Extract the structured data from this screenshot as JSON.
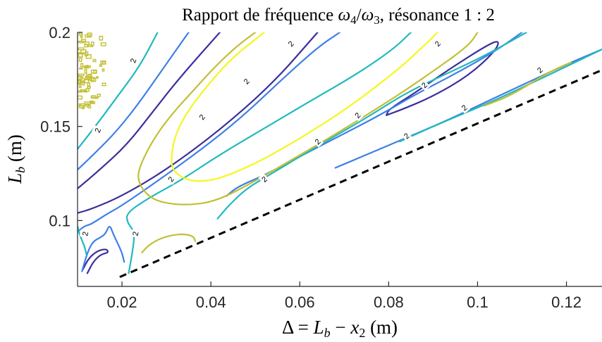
{
  "chart_data": {
    "type": "contour",
    "title": "Rapport de fréquence ω4/ω3, résonance 1 : 2",
    "title_parts": {
      "prefix": "Rapport de fréquence ",
      "omega4": "ω",
      "sub4": "4",
      "slash": "/",
      "omega3": "ω",
      "sub3": "3",
      "suffix": ", résonance 1 : 2"
    },
    "xlabel": "Δ = Lb − x2 (m)",
    "xlabel_parts": {
      "delta": "Δ",
      "eq": " = ",
      "L": "L",
      "b": "b",
      "minus": " − ",
      "x": "x",
      "two": "2",
      "unit": " (m)"
    },
    "ylabel": "Lb (m)",
    "ylabel_parts": {
      "L": "L",
      "b": "b",
      "unit": " (m)"
    },
    "xlim": [
      0.01,
      0.128
    ],
    "ylim": [
      0.065,
      0.2
    ],
    "xticks": [
      0.02,
      0.04,
      0.06,
      0.08,
      0.1,
      0.12
    ],
    "xtick_labels": [
      "0.02",
      "0.04",
      "0.06",
      "0.08",
      "0.1",
      "0.12"
    ],
    "yticks": [
      0.1,
      0.15,
      0.2
    ],
    "ytick_labels": [
      "0.1",
      "0.15",
      "0.2"
    ],
    "contour_label_text": "2",
    "grid": false,
    "colors": {
      "dark_blue": "#3b2f9a",
      "blue": "#3f7fe6",
      "teal": "#21b8be",
      "olive": "#c2bf34",
      "yellow": "#f4f71c",
      "boundary": "#000000"
    },
    "boundary_line": {
      "style": "dashed",
      "x": [
        0.0195,
        0.128
      ],
      "y": [
        0.07,
        0.18
      ]
    },
    "contours": [
      {
        "level": "dark_blue",
        "points": [
          [
            0.0112,
            0.074
          ],
          [
            0.0125,
            0.08
          ],
          [
            0.0145,
            0.084
          ],
          [
            0.0165,
            0.085
          ],
          [
            0.017,
            0.083
          ],
          [
            0.0152,
            0.082
          ],
          [
            0.0135,
            0.078
          ],
          [
            0.0122,
            0.072
          ]
        ]
      },
      {
        "level": "dark_blue",
        "points": [
          [
            0.01,
            0.104
          ],
          [
            0.013,
            0.106
          ],
          [
            0.02,
            0.113
          ],
          [
            0.03,
            0.127
          ],
          [
            0.042,
            0.148
          ],
          [
            0.054,
            0.173
          ],
          [
            0.064,
            0.2
          ]
        ]
      },
      {
        "level": "dark_blue",
        "points": [
          [
            0.01,
            0.117
          ],
          [
            0.015,
            0.127
          ],
          [
            0.021,
            0.14
          ],
          [
            0.027,
            0.158
          ],
          [
            0.033,
            0.176
          ],
          [
            0.042,
            0.2
          ]
        ]
      },
      {
        "level": "dark_blue",
        "points": [
          [
            0.0795,
            0.156
          ],
          [
            0.083,
            0.159
          ],
          [
            0.09,
            0.166
          ],
          [
            0.098,
            0.177
          ],
          [
            0.104,
            0.19
          ],
          [
            0.105,
            0.196
          ],
          [
            0.102,
            0.193
          ],
          [
            0.094,
            0.181
          ],
          [
            0.086,
            0.168
          ],
          [
            0.08,
            0.159
          ],
          [
            0.0795,
            0.156
          ]
        ]
      },
      {
        "level": "blue",
        "points": [
          [
            0.011,
            0.073
          ],
          [
            0.0122,
            0.083
          ],
          [
            0.0135,
            0.089
          ],
          [
            0.0152,
            0.091
          ],
          [
            0.0163,
            0.093
          ],
          [
            0.0172,
            0.098
          ],
          [
            0.018,
            0.093
          ],
          [
            0.019,
            0.088
          ],
          [
            0.02,
            0.083
          ],
          [
            0.0205,
            0.078
          ]
        ]
      },
      {
        "level": "blue",
        "points": [
          [
            0.01,
            0.094
          ],
          [
            0.0115,
            0.097
          ],
          [
            0.013,
            0.098
          ],
          [
            0.015,
            0.101
          ],
          [
            0.017,
            0.104
          ],
          [
            0.02,
            0.108
          ],
          [
            0.028,
            0.121
          ],
          [
            0.038,
            0.138
          ],
          [
            0.047,
            0.155
          ],
          [
            0.056,
            0.175
          ],
          [
            0.064,
            0.192
          ],
          [
            0.069,
            0.2
          ]
        ]
      },
      {
        "level": "blue",
        "points": [
          [
            0.01,
            0.127
          ],
          [
            0.014,
            0.136
          ],
          [
            0.019,
            0.148
          ],
          [
            0.024,
            0.163
          ],
          [
            0.029,
            0.18
          ],
          [
            0.035,
            0.2
          ]
        ]
      },
      {
        "level": "blue",
        "points": [
          [
            0.0435,
            0.113
          ],
          [
            0.046,
            0.118
          ],
          [
            0.052,
            0.124
          ],
          [
            0.06,
            0.134
          ],
          [
            0.069,
            0.145
          ],
          [
            0.078,
            0.156
          ],
          [
            0.086,
            0.167
          ],
          [
            0.095,
            0.178
          ],
          [
            0.104,
            0.19
          ],
          [
            0.11,
            0.2
          ]
        ]
      },
      {
        "level": "blue",
        "points": [
          [
            0.068,
            0.128
          ],
          [
            0.075,
            0.135
          ],
          [
            0.083,
            0.143
          ],
          [
            0.092,
            0.152
          ],
          [
            0.101,
            0.162
          ],
          [
            0.11,
            0.172
          ],
          [
            0.12,
            0.183
          ],
          [
            0.128,
            0.191
          ]
        ]
      },
      {
        "level": "teal",
        "points": [
          [
            0.01,
            0.097
          ],
          [
            0.0105,
            0.092
          ],
          [
            0.0115,
            0.087
          ],
          [
            0.012,
            0.082
          ]
        ]
      },
      {
        "level": "teal",
        "points": [
          [
            0.0215,
            0.072
          ],
          [
            0.0222,
            0.081
          ],
          [
            0.0228,
            0.091
          ],
          [
            0.0225,
            0.095
          ],
          [
            0.0212,
            0.099
          ],
          [
            0.021,
            0.104
          ],
          [
            0.026,
            0.112
          ],
          [
            0.033,
            0.121
          ],
          [
            0.042,
            0.135
          ],
          [
            0.052,
            0.149
          ],
          [
            0.062,
            0.163
          ],
          [
            0.073,
            0.178
          ],
          [
            0.081,
            0.191
          ],
          [
            0.085,
            0.2
          ]
        ]
      },
      {
        "level": "teal",
        "points": [
          [
            0.01,
            0.138
          ],
          [
            0.014,
            0.15
          ],
          [
            0.019,
            0.166
          ],
          [
            0.024,
            0.182
          ],
          [
            0.028,
            0.2
          ]
        ]
      },
      {
        "level": "teal",
        "points": [
          [
            0.0415,
            0.101
          ],
          [
            0.044,
            0.108
          ],
          [
            0.048,
            0.117
          ],
          [
            0.053,
            0.124
          ],
          [
            0.06,
            0.134
          ],
          [
            0.068,
            0.145
          ],
          [
            0.076,
            0.156
          ],
          [
            0.084,
            0.168
          ],
          [
            0.093,
            0.178
          ],
          [
            0.102,
            0.188
          ],
          [
            0.111,
            0.2
          ]
        ]
      },
      {
        "level": "teal",
        "points": [
          [
            0.0825,
            0.142
          ],
          [
            0.089,
            0.149
          ],
          [
            0.096,
            0.156
          ],
          [
            0.104,
            0.164
          ],
          [
            0.113,
            0.174
          ],
          [
            0.121,
            0.183
          ],
          [
            0.128,
            0.191
          ]
        ]
      },
      {
        "level": "olive",
        "points": [
          [
            0.0245,
            0.083
          ],
          [
            0.026,
            0.087
          ],
          [
            0.029,
            0.091
          ],
          [
            0.033,
            0.093
          ],
          [
            0.036,
            0.092
          ],
          [
            0.0365,
            0.089
          ]
        ]
      },
      {
        "level": "olive",
        "points": [
          [
            0.05,
            0.2
          ],
          [
            0.046,
            0.193
          ],
          [
            0.041,
            0.182
          ],
          [
            0.036,
            0.169
          ],
          [
            0.031,
            0.156
          ],
          [
            0.027,
            0.143
          ],
          [
            0.024,
            0.129
          ],
          [
            0.0235,
            0.122
          ],
          [
            0.025,
            0.115
          ],
          [
            0.028,
            0.11
          ],
          [
            0.034,
            0.108
          ],
          [
            0.041,
            0.11
          ],
          [
            0.05,
            0.121
          ],
          [
            0.058,
            0.132
          ],
          [
            0.066,
            0.143
          ],
          [
            0.075,
            0.156
          ],
          [
            0.083,
            0.168
          ],
          [
            0.091,
            0.181
          ],
          [
            0.098,
            0.193
          ],
          [
            0.1,
            0.2
          ]
        ]
      },
      {
        "level": "olive",
        "points": [
          [
            0.1015,
            0.161
          ],
          [
            0.106,
            0.165
          ],
          [
            0.11,
            0.17
          ],
          [
            0.114,
            0.176
          ],
          [
            0.118,
            0.181
          ],
          [
            0.121,
            0.184
          ]
        ]
      },
      {
        "level": "yellow",
        "points": [
          [
            0.052,
            0.2
          ],
          [
            0.045,
            0.187
          ],
          [
            0.04,
            0.174
          ],
          [
            0.035,
            0.159
          ],
          [
            0.032,
            0.146
          ],
          [
            0.031,
            0.133
          ],
          [
            0.0315,
            0.126
          ],
          [
            0.035,
            0.121
          ],
          [
            0.04,
            0.121
          ],
          [
            0.046,
            0.126
          ],
          [
            0.053,
            0.134
          ],
          [
            0.061,
            0.145
          ],
          [
            0.069,
            0.157
          ],
          [
            0.076,
            0.169
          ],
          [
            0.083,
            0.182
          ],
          [
            0.088,
            0.193
          ],
          [
            0.091,
            0.2
          ]
        ]
      }
    ],
    "noise_region": {
      "level": "olive",
      "x": [
        0.01,
        0.016
      ],
      "y": [
        0.16,
        0.2
      ]
    },
    "contour_labels": [
      {
        "x": 0.0117,
        "y": 0.093,
        "angle": -80
      },
      {
        "x": 0.0145,
        "y": 0.148,
        "angle": -68
      },
      {
        "x": 0.0225,
        "y": 0.185,
        "angle": -72
      },
      {
        "x": 0.023,
        "y": 0.093,
        "angle": -80
      },
      {
        "x": 0.031,
        "y": 0.122,
        "angle": -55
      },
      {
        "x": 0.038,
        "y": 0.155,
        "angle": -52
      },
      {
        "x": 0.048,
        "y": 0.174,
        "angle": -47
      },
      {
        "x": 0.058,
        "y": 0.194,
        "angle": -47
      },
      {
        "x": 0.052,
        "y": 0.122,
        "angle": -42
      },
      {
        "x": 0.064,
        "y": 0.142,
        "angle": -45
      },
      {
        "x": 0.073,
        "y": 0.156,
        "angle": -45
      },
      {
        "x": 0.088,
        "y": 0.172,
        "angle": -45
      },
      {
        "x": 0.091,
        "y": 0.194,
        "angle": -50
      },
      {
        "x": 0.084,
        "y": 0.145,
        "angle": -40
      },
      {
        "x": 0.097,
        "y": 0.16,
        "angle": -40
      },
      {
        "x": 0.114,
        "y": 0.18,
        "angle": -42
      }
    ]
  }
}
